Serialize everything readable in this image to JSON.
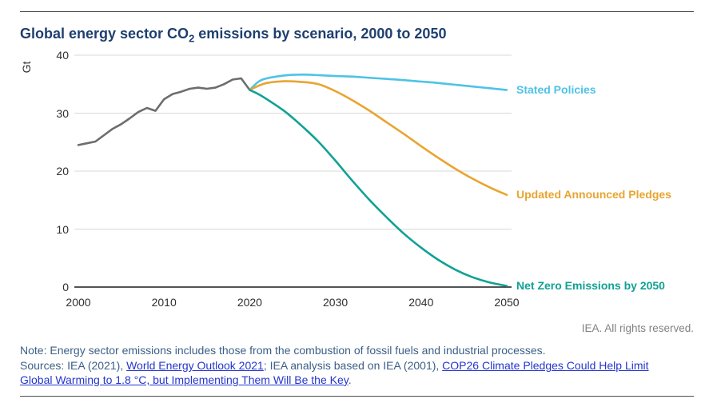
{
  "page": {
    "title_prefix": "Global energy sector CO",
    "title_sub": "2",
    "title_suffix": " emissions by scenario, 2000 to 2050",
    "rights": "IEA. All rights reserved."
  },
  "footer": {
    "note": "Note: Energy sector emissions includes those from the combustion of fossil fuels and industrial processes.",
    "sources_prefix": "Sources: IEA (2021), ",
    "link_weo": "World Energy Outlook 2021",
    "sources_mid": "; IEA analysis based on IEA (2001), ",
    "link_cop26_line1": "COP26 Climate Pledges Could Help Limit",
    "link_cop26_line2": "Global Warming to 1.8 °C, but Implementing Them Will Be the Key",
    "sources_suffix": "."
  },
  "chart_data": {
    "type": "line",
    "title": "Global energy sector CO2 emissions by scenario, 2000 to 2050",
    "xlabel": "",
    "ylabel": "Gt",
    "xlim": [
      2000,
      2050
    ],
    "ylim": [
      0,
      40
    ],
    "x_ticks": [
      2000,
      2010,
      2020,
      2030,
      2040,
      2050
    ],
    "y_ticks": [
      0,
      10,
      20,
      30,
      40
    ],
    "grid": "horizontal",
    "legend_position": "line-end labels, right of plot",
    "gridline_color": "#d9d9d9",
    "axis_color": "#1a1a1a",
    "series": [
      {
        "id": "historical",
        "name": "Historical emissions",
        "label": null,
        "color": "#6d6d6d",
        "smooth": false,
        "points": [
          [
            2000,
            24.5
          ],
          [
            2001,
            24.8
          ],
          [
            2002,
            25.1
          ],
          [
            2003,
            26.2
          ],
          [
            2004,
            27.3
          ],
          [
            2005,
            28.1
          ],
          [
            2006,
            29.1
          ],
          [
            2007,
            30.2
          ],
          [
            2008,
            30.9
          ],
          [
            2009,
            30.4
          ],
          [
            2010,
            32.4
          ],
          [
            2011,
            33.3
          ],
          [
            2012,
            33.7
          ],
          [
            2013,
            34.2
          ],
          [
            2014,
            34.4
          ],
          [
            2015,
            34.2
          ],
          [
            2016,
            34.4
          ],
          [
            2017,
            35.0
          ],
          [
            2018,
            35.8
          ],
          [
            2019,
            36.0
          ],
          [
            2020,
            34.0
          ]
        ]
      },
      {
        "id": "stated-policies",
        "name": "Stated Policies",
        "label": "Stated Policies",
        "color": "#4ec3e6",
        "smooth": true,
        "points": [
          [
            2020,
            34.0
          ],
          [
            2021,
            35.4
          ],
          [
            2022,
            36.0
          ],
          [
            2024,
            36.5
          ],
          [
            2026,
            36.65
          ],
          [
            2028,
            36.55
          ],
          [
            2030,
            36.4
          ],
          [
            2032,
            36.3
          ],
          [
            2034,
            36.1
          ],
          [
            2036,
            35.9
          ],
          [
            2038,
            35.7
          ],
          [
            2040,
            35.45
          ],
          [
            2042,
            35.2
          ],
          [
            2044,
            34.9
          ],
          [
            2046,
            34.6
          ],
          [
            2048,
            34.3
          ],
          [
            2050,
            34.0
          ]
        ]
      },
      {
        "id": "updated-announced-pledges",
        "name": "Updated Announced Pledges",
        "label": "Updated Announced Pledges",
        "color": "#e9a430",
        "smooth": true,
        "points": [
          [
            2020,
            34.0
          ],
          [
            2021,
            34.7
          ],
          [
            2022,
            35.2
          ],
          [
            2024,
            35.5
          ],
          [
            2026,
            35.4
          ],
          [
            2028,
            35.0
          ],
          [
            2030,
            33.8
          ],
          [
            2032,
            32.2
          ],
          [
            2034,
            30.4
          ],
          [
            2036,
            28.4
          ],
          [
            2038,
            26.4
          ],
          [
            2040,
            24.3
          ],
          [
            2042,
            22.3
          ],
          [
            2044,
            20.4
          ],
          [
            2046,
            18.7
          ],
          [
            2048,
            17.2
          ],
          [
            2050,
            15.9
          ]
        ]
      },
      {
        "id": "net-zero-2050",
        "name": "Net Zero Emissions by 2050",
        "label": "Net Zero Emissions by 2050",
        "color": "#0fa294",
        "smooth": true,
        "points": [
          [
            2020,
            34.0
          ],
          [
            2021,
            33.3
          ],
          [
            2022,
            32.4
          ],
          [
            2024,
            30.4
          ],
          [
            2026,
            27.9
          ],
          [
            2028,
            25.1
          ],
          [
            2030,
            21.8
          ],
          [
            2032,
            18.3
          ],
          [
            2034,
            15.0
          ],
          [
            2036,
            12.0
          ],
          [
            2038,
            9.2
          ],
          [
            2040,
            6.8
          ],
          [
            2042,
            4.7
          ],
          [
            2044,
            3.0
          ],
          [
            2046,
            1.7
          ],
          [
            2048,
            0.8
          ],
          [
            2050,
            0.2
          ]
        ]
      }
    ]
  }
}
